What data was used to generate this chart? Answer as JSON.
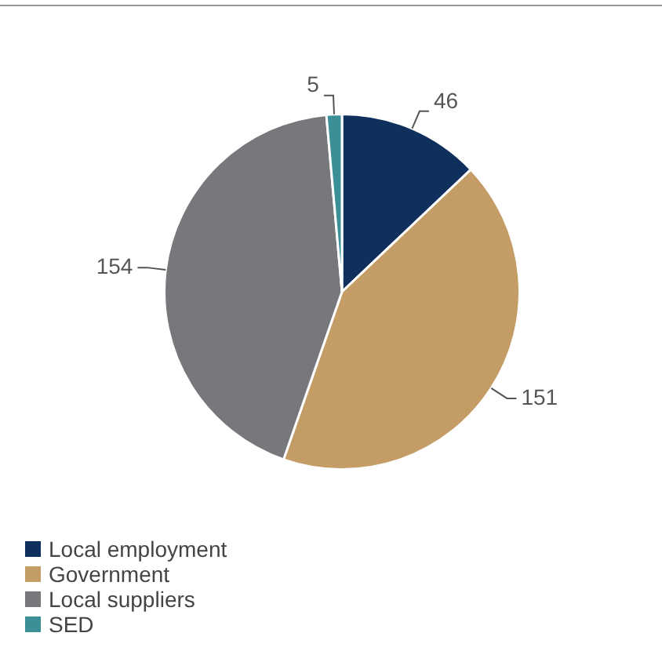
{
  "chart_data": {
    "type": "pie",
    "categories": [
      "Local employment",
      "Government",
      "Local suppliers",
      "SED"
    ],
    "values": [
      46,
      151,
      154,
      5
    ],
    "colors": [
      "#0f2f5c",
      "#c49c66",
      "#77787b",
      "#3b9098"
    ],
    "data_labels": true,
    "legend": "bottom left"
  }
}
